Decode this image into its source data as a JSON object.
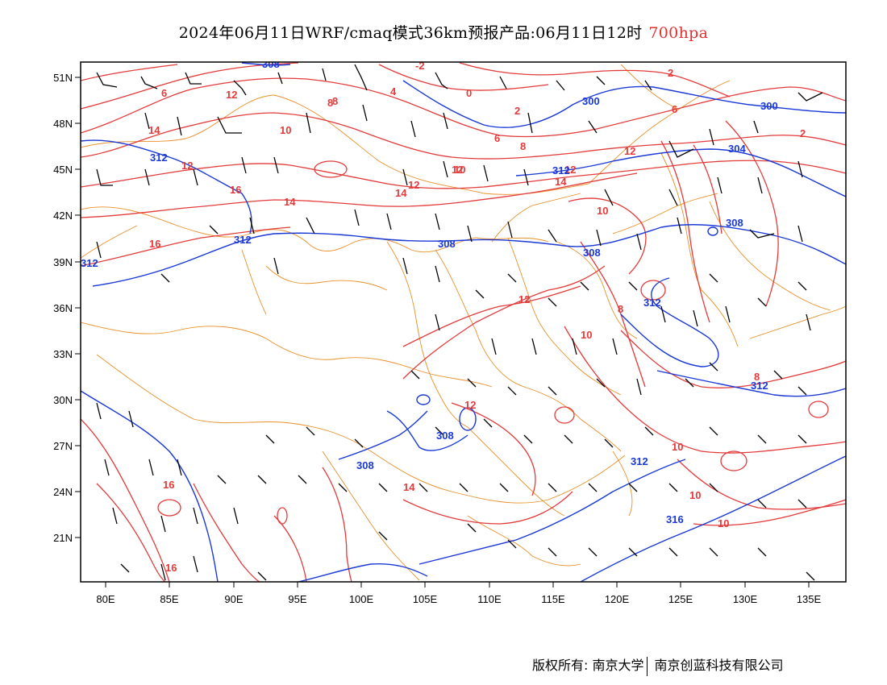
{
  "title": {
    "text": "2024年06月11日WRF/cmaq模式36km预报产品:06月11日12时",
    "level": "700hpa"
  },
  "axes": {
    "lat_labels": [
      "51N",
      "48N",
      "45N",
      "42N",
      "39N",
      "36N",
      "33N",
      "30N",
      "27N",
      "24N",
      "21N"
    ],
    "lon_labels": [
      "80E",
      "85E",
      "90E",
      "95E",
      "100E",
      "105E",
      "110E",
      "115E",
      "120E",
      "125E",
      "130E",
      "135E"
    ]
  },
  "colors": {
    "temperature_contour": "#e33b3b",
    "height_contour": "#1a39d6",
    "boundary": "#e8902a",
    "wind_barb": "#000000"
  },
  "temperature_labels": [
    "-2",
    "2",
    "0",
    "6",
    "4",
    "8",
    "12",
    "10",
    "14",
    "12",
    "16",
    "16",
    "14",
    "12",
    "14",
    "12",
    "12",
    "10",
    "8",
    "6",
    "2",
    "6",
    "8",
    "10",
    "12",
    "14",
    "12",
    "10",
    "8",
    "10",
    "14",
    "16",
    "16",
    "12",
    "10",
    "10",
    "8",
    "2"
  ],
  "height_labels": [
    "308",
    "300",
    "300",
    "312",
    "304",
    "312",
    "312",
    "308",
    "308",
    "308",
    "312",
    "312",
    "308",
    "308",
    "312",
    "312",
    "316"
  ],
  "footer": {
    "copyright": "版权所有: 南京大学",
    "company": "南京创蓝科技有限公司"
  }
}
